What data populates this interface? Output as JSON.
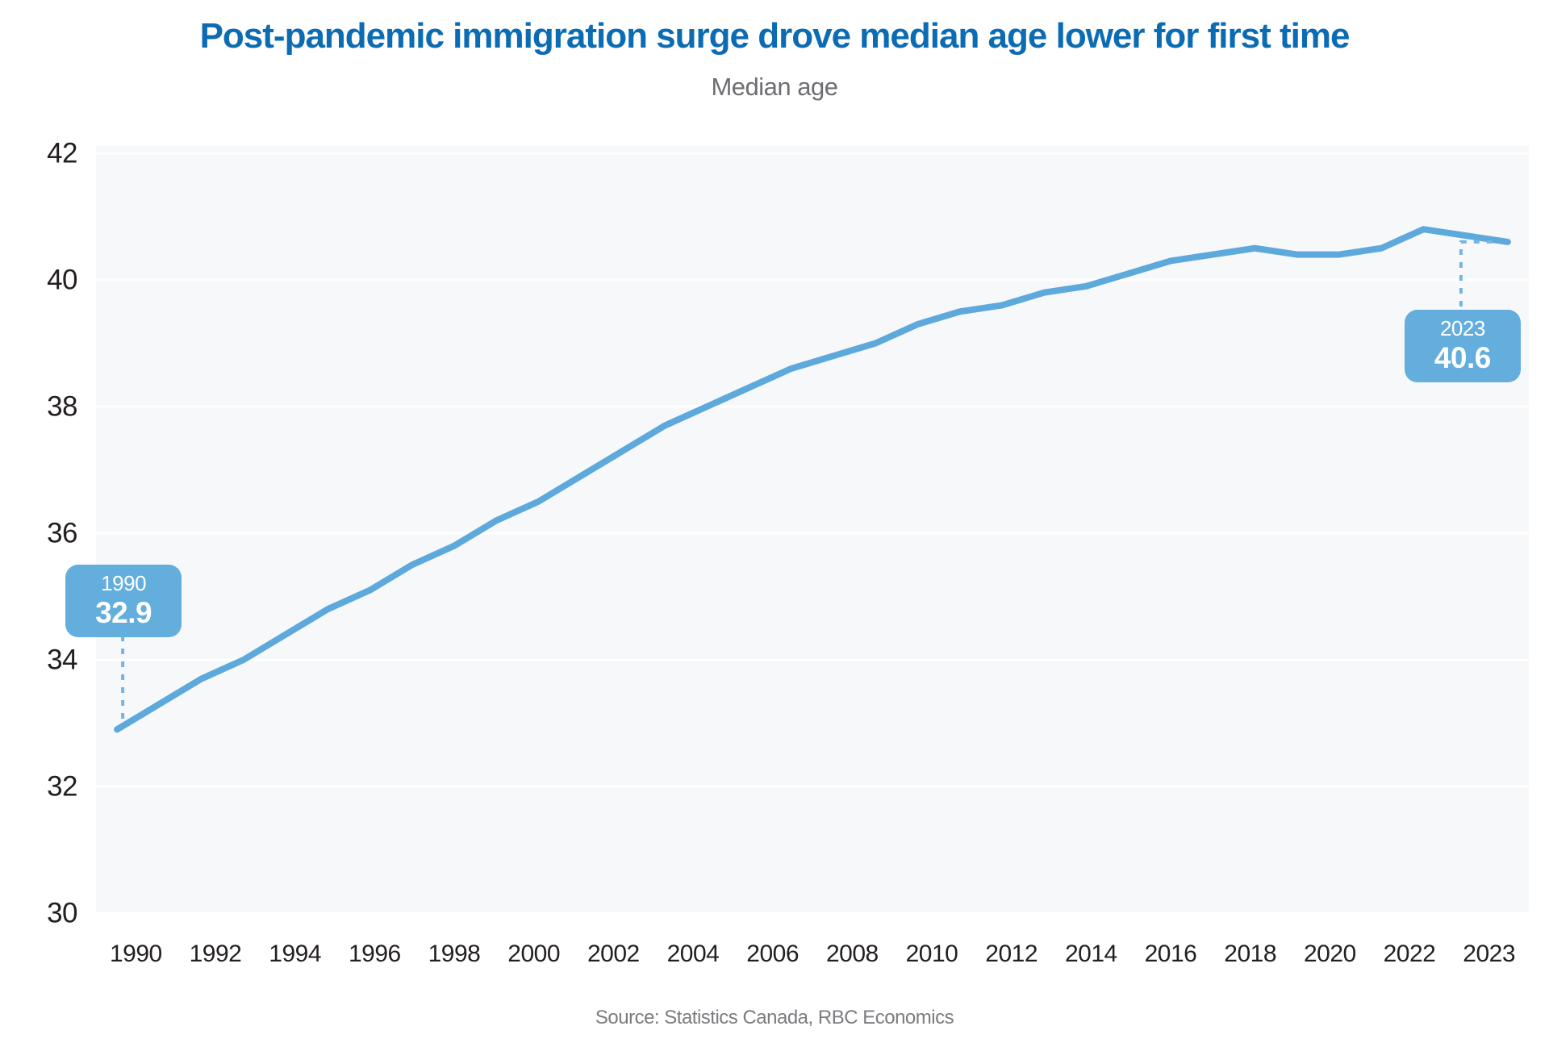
{
  "chart_data": {
    "type": "line",
    "title": "Post-pandemic immigration surge drove median age lower for first time",
    "subtitle": "Median age",
    "source": "Source: Statistics Canada, RBC Economics",
    "x": [
      1990,
      1991,
      1992,
      1993,
      1994,
      1995,
      1996,
      1997,
      1998,
      1999,
      2000,
      2001,
      2002,
      2003,
      2004,
      2005,
      2006,
      2007,
      2008,
      2009,
      2010,
      2011,
      2012,
      2013,
      2014,
      2015,
      2016,
      2017,
      2018,
      2019,
      2020,
      2021,
      2022,
      2023
    ],
    "series": [
      {
        "name": "Median age",
        "values": [
          32.9,
          33.3,
          33.7,
          34.0,
          34.4,
          34.8,
          35.1,
          35.5,
          35.8,
          36.2,
          36.5,
          36.9,
          37.3,
          37.7,
          38.0,
          38.3,
          38.6,
          38.8,
          39.0,
          39.3,
          39.5,
          39.6,
          39.8,
          39.9,
          40.1,
          40.3,
          40.4,
          40.5,
          40.4,
          40.4,
          40.5,
          40.8,
          40.7,
          40.6
        ]
      }
    ],
    "ylim": [
      30,
      42
    ],
    "y_ticks": [
      42,
      40,
      38,
      36,
      34,
      32,
      30
    ],
    "x_tick_labels": [
      "1990",
      "1992",
      "1994",
      "1996",
      "1998",
      "2000",
      "2002",
      "2004",
      "2006",
      "2008",
      "2010",
      "2012",
      "2014",
      "2016",
      "2018",
      "2020",
      "2022",
      "2023"
    ],
    "grid": "horizontal white gridlines on light panel, no axis lines, legend none",
    "annotations": [
      {
        "x": 1990,
        "year_label": "1990",
        "value_label": "32.9"
      },
      {
        "x": 2023,
        "year_label": "2023",
        "value_label": "40.6"
      }
    ],
    "colors": {
      "title": "#0c6cb3",
      "subtitle": "#6d6e71",
      "source": "#7a7c7f",
      "axis_text": "#231f20",
      "panel_bg": "#f7f8fa",
      "gridline": "#ffffff",
      "line": "#5ea9dc",
      "callout_bg": "#63aedd",
      "connector": "#74b5e3"
    }
  }
}
